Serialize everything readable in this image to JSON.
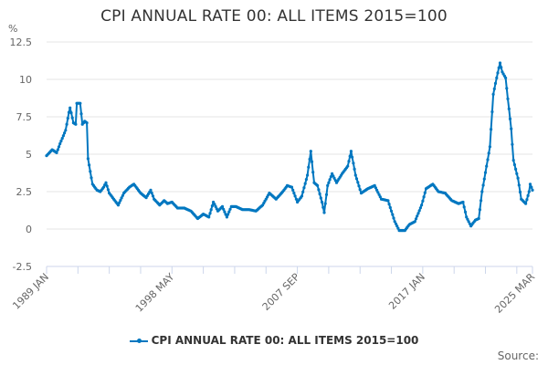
{
  "chart_data": {
    "type": "line",
    "title": "CPI ANNUAL RATE 00: ALL ITEMS 2015=100",
    "ylabel": "%",
    "xlabel": "",
    "ylim": [
      -2.5,
      12.5
    ],
    "yticks": [
      "12.5",
      "10",
      "7.5",
      "5",
      "2.5",
      "0",
      "-2.5"
    ],
    "ytick_values": [
      12.5,
      10,
      7.5,
      5,
      2.5,
      0,
      -2.5
    ],
    "x_start": "1989 JAN",
    "x_end": "2025 MAR",
    "xticks": [
      "1989 JAN",
      "1998 MAY",
      "2007 SEP",
      "2017 JAN",
      "2025 MAR"
    ],
    "xtick_months": [
      0,
      112,
      224,
      336,
      434
    ],
    "grid": true,
    "legend_position": "bottom",
    "series": [
      {
        "name": "CPI ANNUAL RATE 00: ALL ITEMS 2015=100",
        "color": "#0077c0",
        "anchors": [
          [
            "1989-01",
            4.9
          ],
          [
            "1989-06",
            5.3
          ],
          [
            "1989-10",
            5.1
          ],
          [
            "1990-01",
            5.7
          ],
          [
            "1990-06",
            6.6
          ],
          [
            "1990-09",
            7.8
          ],
          [
            "1990-10",
            8.1
          ],
          [
            "1991-01",
            7.1
          ],
          [
            "1991-03",
            7.0
          ],
          [
            "1991-04",
            8.4
          ],
          [
            "1991-07",
            8.4
          ],
          [
            "1991-09",
            7.0
          ],
          [
            "1991-11",
            7.2
          ],
          [
            "1992-01",
            7.1
          ],
          [
            "1992-02",
            4.7
          ],
          [
            "1992-06",
            3.0
          ],
          [
            "1992-10",
            2.6
          ],
          [
            "1993-01",
            2.5
          ],
          [
            "1993-04",
            2.8
          ],
          [
            "1993-06",
            3.1
          ],
          [
            "1993-09",
            2.4
          ],
          [
            "1994-01",
            2.0
          ],
          [
            "1994-05",
            1.6
          ],
          [
            "1994-10",
            2.4
          ],
          [
            "1995-03",
            2.8
          ],
          [
            "1995-07",
            3.0
          ],
          [
            "1996-01",
            2.4
          ],
          [
            "1996-06",
            2.1
          ],
          [
            "1996-10",
            2.6
          ],
          [
            "1997-01",
            2.0
          ],
          [
            "1997-06",
            1.6
          ],
          [
            "1997-10",
            1.9
          ],
          [
            "1998-01",
            1.7
          ],
          [
            "1998-05",
            1.8
          ],
          [
            "1998-10",
            1.4
          ],
          [
            "1999-04",
            1.4
          ],
          [
            "1999-10",
            1.2
          ],
          [
            "2000-04",
            0.7
          ],
          [
            "2000-09",
            1.0
          ],
          [
            "2001-02",
            0.8
          ],
          [
            "2001-06",
            1.8
          ],
          [
            "2001-10",
            1.2
          ],
          [
            "2002-02",
            1.5
          ],
          [
            "2002-06",
            0.8
          ],
          [
            "2002-10",
            1.5
          ],
          [
            "2003-02",
            1.5
          ],
          [
            "2003-08",
            1.3
          ],
          [
            "2004-02",
            1.3
          ],
          [
            "2004-08",
            1.2
          ],
          [
            "2005-02",
            1.6
          ],
          [
            "2005-08",
            2.4
          ],
          [
            "2006-02",
            2.0
          ],
          [
            "2006-08",
            2.5
          ],
          [
            "2006-12",
            2.9
          ],
          [
            "2007-04",
            2.8
          ],
          [
            "2007-09",
            1.8
          ],
          [
            "2008-01",
            2.2
          ],
          [
            "2008-06",
            3.6
          ],
          [
            "2008-09",
            5.2
          ],
          [
            "2008-12",
            3.1
          ],
          [
            "2009-03",
            2.9
          ],
          [
            "2009-07",
            1.8
          ],
          [
            "2009-09",
            1.1
          ],
          [
            "2009-12",
            2.9
          ],
          [
            "2010-04",
            3.7
          ],
          [
            "2010-08",
            3.1
          ],
          [
            "2011-01",
            3.7
          ],
          [
            "2011-06",
            4.2
          ],
          [
            "2011-09",
            5.2
          ],
          [
            "2012-01",
            3.6
          ],
          [
            "2012-06",
            2.4
          ],
          [
            "2012-12",
            2.7
          ],
          [
            "2013-06",
            2.9
          ],
          [
            "2013-12",
            2.0
          ],
          [
            "2014-06",
            1.9
          ],
          [
            "2014-12",
            0.5
          ],
          [
            "2015-04",
            -0.1
          ],
          [
            "2015-09",
            -0.1
          ],
          [
            "2016-01",
            0.3
          ],
          [
            "2016-06",
            0.5
          ],
          [
            "2016-12",
            1.6
          ],
          [
            "2017-04",
            2.7
          ],
          [
            "2017-10",
            3.0
          ],
          [
            "2018-03",
            2.5
          ],
          [
            "2018-09",
            2.4
          ],
          [
            "2019-03",
            1.9
          ],
          [
            "2019-09",
            1.7
          ],
          [
            "2020-01",
            1.8
          ],
          [
            "2020-04",
            0.8
          ],
          [
            "2020-08",
            0.2
          ],
          [
            "2020-12",
            0.6
          ],
          [
            "2021-03",
            0.7
          ],
          [
            "2021-06",
            2.5
          ],
          [
            "2021-10",
            4.2
          ],
          [
            "2022-01",
            5.5
          ],
          [
            "2022-04",
            9.0
          ],
          [
            "2022-07",
            10.1
          ],
          [
            "2022-10",
            11.1
          ],
          [
            "2022-12",
            10.5
          ],
          [
            "2023-03",
            10.1
          ],
          [
            "2023-05",
            8.7
          ],
          [
            "2023-08",
            6.7
          ],
          [
            "2023-10",
            4.6
          ],
          [
            "2023-12",
            4.0
          ],
          [
            "2024-02",
            3.4
          ],
          [
            "2024-05",
            2.0
          ],
          [
            "2024-09",
            1.7
          ],
          [
            "2024-12",
            2.5
          ],
          [
            "2025-01",
            3.0
          ],
          [
            "2025-03",
            2.6
          ]
        ]
      }
    ]
  },
  "legend": {
    "label": "CPI ANNUAL RATE 00: ALL ITEMS 2015=100"
  },
  "footer": {
    "source": "Source:"
  }
}
